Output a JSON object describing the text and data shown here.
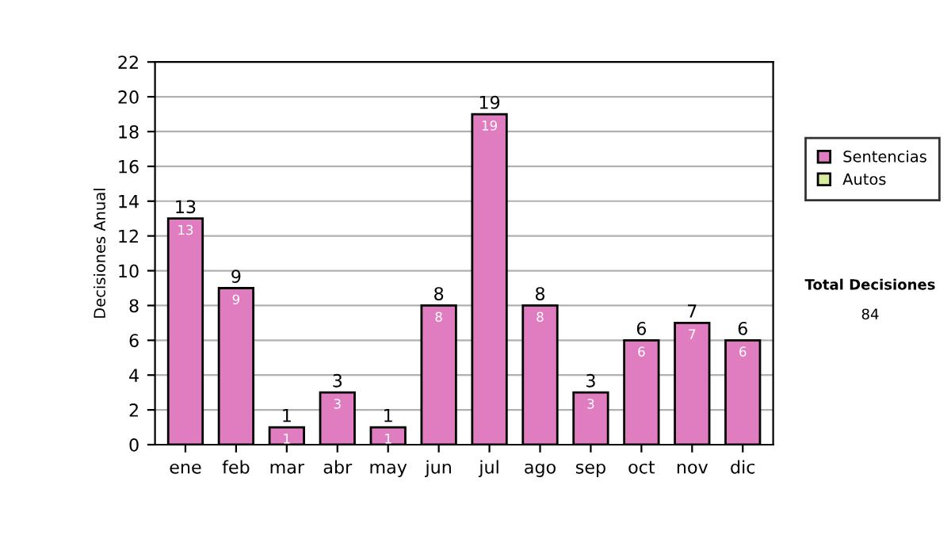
{
  "chart_data": {
    "type": "bar",
    "ylabel": "Decisiones Anual",
    "categories": [
      "ene",
      "feb",
      "mar",
      "abr",
      "may",
      "jun",
      "jul",
      "ago",
      "sep",
      "oct",
      "nov",
      "dic"
    ],
    "series": [
      {
        "name": "Sentencias",
        "color": "#e07cc0",
        "values": [
          13,
          9,
          1,
          3,
          1,
          8,
          19,
          8,
          3,
          6,
          7,
          6
        ]
      },
      {
        "name": "Autos",
        "color": "#d8eca0",
        "values": [
          null,
          null,
          null,
          null,
          null,
          null,
          null,
          null,
          null,
          null,
          null,
          null
        ]
      }
    ],
    "ylim": [
      0,
      22
    ],
    "yticks": [
      0,
      2,
      4,
      6,
      8,
      10,
      12,
      14,
      16,
      18,
      20,
      22
    ],
    "grid": "y",
    "legend": "right",
    "data_labels": true,
    "totals": [
      "13",
      "9",
      "1",
      "3",
      "1",
      "8",
      "19",
      "8",
      "3",
      "6",
      "7",
      "6"
    ],
    "annotations": [
      "Total Decisiones",
      "84"
    ]
  }
}
